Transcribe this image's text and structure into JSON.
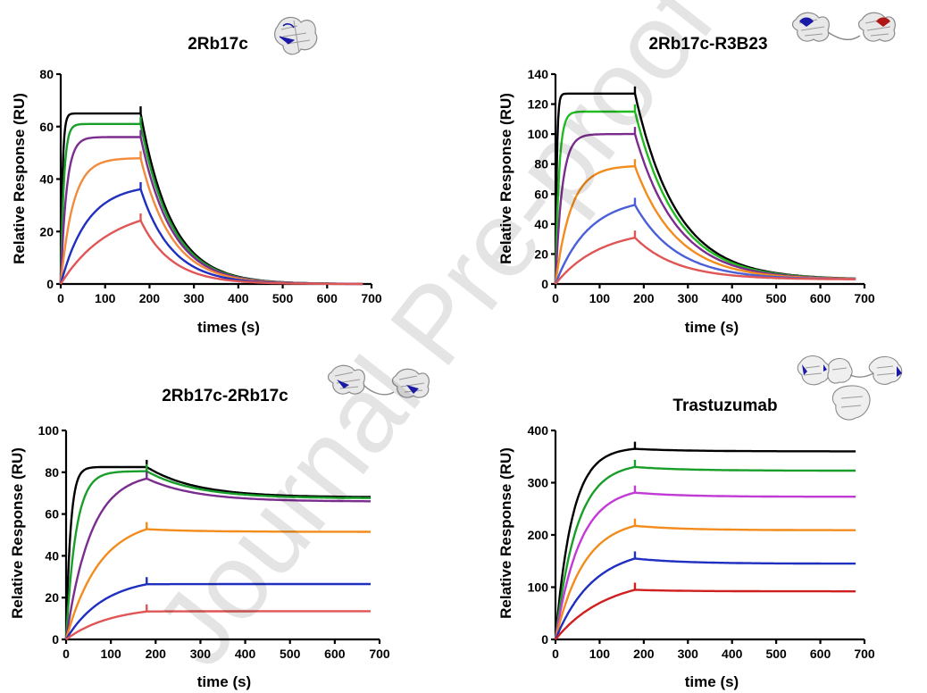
{
  "chart_data": [
    {
      "type": "line",
      "title": "2Rb17c",
      "xlabel": "times (s)",
      "ylabel": "Relative Response (RU)",
      "xlim": [
        0,
        700
      ],
      "ylim": [
        0,
        80
      ],
      "xticks": [
        0,
        100,
        200,
        300,
        400,
        500,
        600,
        700
      ],
      "yticks": [
        0,
        20,
        40,
        60,
        80
      ],
      "grid": false,
      "legend": "none",
      "kinetics": {
        "t_end_association": 180,
        "t_end": 680,
        "tau_dissociation": 70,
        "baseline": 0
      },
      "series": [
        {
          "color": "#000000",
          "plateau": 65,
          "tau_association": 4
        },
        {
          "color": "#1a9e2a",
          "plateau": 61,
          "tau_association": 7
        },
        {
          "color": "#7b2d8e",
          "plateau": 56,
          "tau_association": 13
        },
        {
          "color": "#f28c3c",
          "plateau": 48,
          "tau_association": 28
        },
        {
          "color": "#1f2fbf",
          "plateau": 38,
          "tau_association": 60
        },
        {
          "color": "#e05555",
          "plateau": 30,
          "tau_association": 110
        }
      ]
    },
    {
      "type": "line",
      "title": "2Rb17c-R3B23",
      "xlabel": "time (s)",
      "ylabel": "Relative Response (RU)",
      "xlim": [
        0,
        700
      ],
      "ylim": [
        0,
        140
      ],
      "xticks": [
        0,
        100,
        200,
        300,
        400,
        500,
        600,
        700
      ],
      "yticks": [
        0,
        20,
        40,
        60,
        80,
        100,
        120,
        140
      ],
      "grid": false,
      "legend": "none",
      "kinetics": {
        "t_end_association": 180,
        "t_end": 680,
        "tau_dissociation": 95,
        "baseline": 3
      },
      "series": [
        {
          "color": "#000000",
          "plateau": 127,
          "tau_association": 3
        },
        {
          "color": "#22bb22",
          "plateau": 115,
          "tau_association": 8
        },
        {
          "color": "#7b2d8e",
          "plateau": 100,
          "tau_association": 15
        },
        {
          "color": "#f28c1c",
          "plateau": 79,
          "tau_association": 35
        },
        {
          "color": "#4a5fd8",
          "plateau": 58,
          "tau_association": 75
        },
        {
          "color": "#e05555",
          "plateau": 37,
          "tau_association": 100
        }
      ]
    },
    {
      "type": "line",
      "title": "2Rb17c-2Rb17c",
      "xlabel": "time (s)",
      "ylabel": "Relative Response (RU)",
      "xlim": [
        0,
        700
      ],
      "ylim": [
        0,
        100
      ],
      "xticks": [
        0,
        100,
        200,
        300,
        400,
        500,
        600,
        700
      ],
      "yticks": [
        0,
        20,
        40,
        60,
        80,
        100
      ],
      "grid": false,
      "legend": "none",
      "kinetics": {
        "t_end_association": 180,
        "t_end": 680,
        "tau_dissociation": 110,
        "baseline": 0
      },
      "series": [
        {
          "color": "#000000",
          "plateau": 82.5,
          "tau_association": 10,
          "end_value": 68
        },
        {
          "color": "#1a9e2a",
          "plateau": 80.5,
          "tau_association": 22,
          "end_value": 67.5
        },
        {
          "color": "#7b2d8e",
          "plateau": 80,
          "tau_association": 55,
          "end_value": 66
        },
        {
          "color": "#f28c1c",
          "plateau": 58,
          "tau_association": 75,
          "end_value": 51.5
        },
        {
          "color": "#1f2fbf",
          "plateau": 30,
          "tau_association": 85,
          "end_value": 26.5
        },
        {
          "color": "#e05555",
          "plateau": 16,
          "tau_association": 100,
          "end_value": 13.5
        }
      ]
    },
    {
      "type": "line",
      "title": "Trastuzumab",
      "xlabel": "time (s)",
      "ylabel": "Relative Response (RU)",
      "xlim": [
        0,
        700
      ],
      "ylim": [
        0,
        400
      ],
      "xticks": [
        0,
        100,
        200,
        300,
        400,
        500,
        600,
        700
      ],
      "yticks": [
        0,
        100,
        200,
        300,
        400
      ],
      "grid": false,
      "legend": "none",
      "kinetics": {
        "t_end_association": 180,
        "t_end": 680,
        "tau_dissociation": 110,
        "baseline": 0
      },
      "series": [
        {
          "color": "#000000",
          "plateau": 368,
          "tau_association": 38,
          "end_value": 360
        },
        {
          "color": "#1a9e2a",
          "plateau": 338,
          "tau_association": 48,
          "end_value": 323
        },
        {
          "color": "#c23ad6",
          "plateau": 292,
          "tau_association": 55,
          "end_value": 273
        },
        {
          "color": "#f28c1c",
          "plateau": 232,
          "tau_association": 65,
          "end_value": 209
        },
        {
          "color": "#1f2fbf",
          "plateau": 176,
          "tau_association": 85,
          "end_value": 145
        },
        {
          "color": "#d01f1f",
          "plateau": 120,
          "tau_association": 115,
          "end_value": 92
        }
      ]
    }
  ],
  "watermark": "Journal Pre-proof",
  "icons": [
    "protein-structure-icon",
    "protein-dimer-icon",
    "protein-dimer-icon",
    "antibody-structure-icon"
  ]
}
